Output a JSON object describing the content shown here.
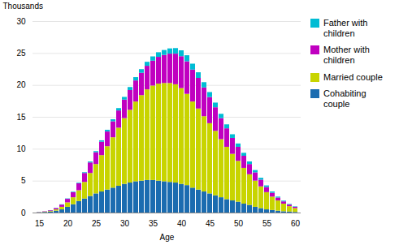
{
  "chart_data": {
    "type": "bar",
    "stacked": true,
    "categories": [
      15,
      16,
      17,
      18,
      19,
      20,
      21,
      22,
      23,
      24,
      25,
      26,
      27,
      28,
      29,
      30,
      31,
      32,
      33,
      34,
      35,
      36,
      37,
      38,
      39,
      40,
      41,
      42,
      43,
      44,
      45,
      46,
      47,
      48,
      49,
      50,
      51,
      52,
      53,
      54,
      55,
      56,
      57,
      58,
      59,
      60
    ],
    "series": [
      {
        "name": "Cohabiting\ncouple",
        "color": "#1b6cb0",
        "values": [
          0.05,
          0.1,
          0.15,
          0.3,
          0.5,
          0.9,
          1.3,
          1.8,
          2.2,
          2.6,
          3.0,
          3.3,
          3.6,
          3.9,
          4.2,
          4.5,
          4.7,
          4.9,
          5.0,
          5.1,
          5.1,
          5.0,
          4.9,
          4.8,
          4.7,
          4.5,
          4.3,
          3.9,
          3.6,
          3.3,
          3.0,
          2.7,
          2.4,
          2.1,
          1.9,
          1.7,
          1.4,
          1.2,
          0.9,
          0.7,
          0.5,
          0.4,
          0.3,
          0.2,
          0.15,
          0.1
        ]
      },
      {
        "name": "Married couple",
        "color": "#c8d400",
        "values": [
          0.02,
          0.05,
          0.1,
          0.2,
          0.4,
          0.7,
          1.1,
          1.7,
          2.6,
          3.6,
          4.6,
          5.7,
          6.8,
          7.9,
          9.1,
          10.3,
          11.4,
          12.5,
          13.4,
          14.2,
          14.8,
          15.2,
          15.4,
          15.5,
          15.4,
          15.0,
          14.3,
          13.5,
          12.7,
          11.8,
          11.0,
          10.1,
          9.1,
          8.2,
          7.3,
          6.4,
          5.6,
          4.8,
          4.1,
          3.4,
          2.7,
          2.1,
          1.6,
          1.2,
          0.85,
          0.6
        ]
      },
      {
        "name": "Mother with\nchildren",
        "color": "#c000c0",
        "values": [
          0.02,
          0.05,
          0.1,
          0.2,
          0.35,
          0.55,
          0.8,
          1.1,
          1.4,
          1.65,
          1.85,
          2.1,
          2.3,
          2.5,
          2.7,
          2.9,
          3.1,
          3.3,
          3.5,
          3.7,
          3.9,
          4.2,
          4.4,
          4.6,
          4.8,
          5.0,
          5.1,
          5.0,
          4.8,
          4.5,
          4.1,
          3.7,
          3.3,
          2.9,
          2.5,
          2.2,
          1.9,
          1.6,
          1.3,
          1.05,
          0.8,
          0.6,
          0.45,
          0.35,
          0.25,
          0.2
        ]
      },
      {
        "name": "Father with\nchildren",
        "color": "#00bcd4",
        "values": [
          0.0,
          0.0,
          0.02,
          0.03,
          0.04,
          0.06,
          0.08,
          0.1,
          0.12,
          0.15,
          0.18,
          0.22,
          0.27,
          0.32,
          0.37,
          0.42,
          0.47,
          0.52,
          0.57,
          0.62,
          0.67,
          0.72,
          0.77,
          0.82,
          0.87,
          0.92,
          0.95,
          0.93,
          0.88,
          0.83,
          0.78,
          0.73,
          0.67,
          0.62,
          0.57,
          0.52,
          0.46,
          0.41,
          0.36,
          0.3,
          0.25,
          0.2,
          0.15,
          0.12,
          0.09,
          0.07
        ]
      }
    ],
    "xlabel": "Age",
    "ylabel": "Thousands",
    "ylim": [
      0,
      30
    ],
    "yticks": [
      0,
      5,
      10,
      15,
      20,
      25,
      30
    ],
    "xticks": [
      15,
      20,
      25,
      30,
      35,
      40,
      45,
      50,
      55,
      60
    ],
    "grid": true,
    "legend": "upper right"
  }
}
